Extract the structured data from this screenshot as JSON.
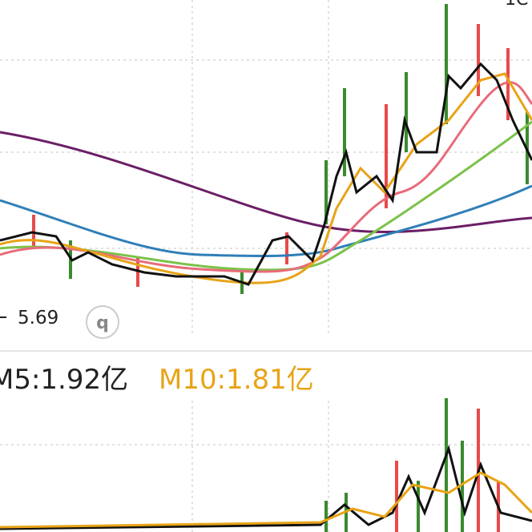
{
  "price_panel": {
    "corner_label": "1C",
    "low_label": "5.69",
    "icon_label": "q"
  },
  "volume_panel": {
    "ma5_label": "M5:1.92亿",
    "ma10_label": "M10:1.81亿"
  }
}
